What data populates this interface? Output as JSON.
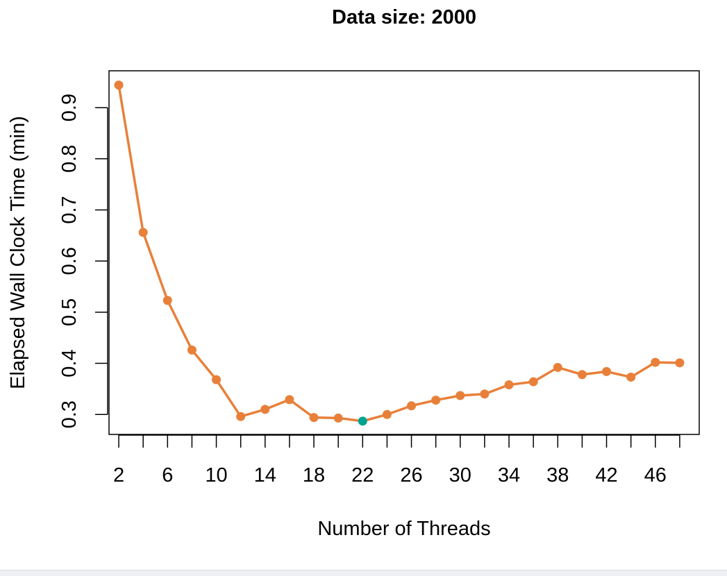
{
  "chart_data": {
    "type": "line",
    "title": "Data size: 2000",
    "xlabel": "Number of Threads",
    "ylabel": "Elapsed Wall Clock Time (min)",
    "x": [
      2,
      4,
      6,
      8,
      10,
      12,
      14,
      16,
      18,
      20,
      22,
      24,
      26,
      28,
      30,
      32,
      34,
      36,
      38,
      40,
      42,
      44,
      46,
      48
    ],
    "series": [
      {
        "values": [
          0.944,
          0.656,
          0.523,
          0.426,
          0.368,
          0.296,
          0.31,
          0.329,
          0.294,
          0.293,
          0.287,
          0.3,
          0.317,
          0.328,
          0.337,
          0.34,
          0.358,
          0.364,
          0.392,
          0.378,
          0.384,
          0.373,
          0.402,
          0.401
        ],
        "color": "#e8803a"
      }
    ],
    "highlight": {
      "x": 22,
      "y": 0.287,
      "color": "#00a38f"
    },
    "x_ticks": [
      2,
      4,
      6,
      8,
      10,
      12,
      14,
      16,
      18,
      20,
      22,
      24,
      26,
      28,
      30,
      32,
      34,
      36,
      38,
      40,
      42,
      44,
      46,
      48
    ],
    "x_tick_labels": [
      "2",
      "6",
      "10",
      "14",
      "18",
      "22",
      "26",
      "30",
      "34",
      "38",
      "42",
      "46"
    ],
    "y_ticks": [
      0.3,
      0.4,
      0.5,
      0.6,
      0.7,
      0.8,
      0.9
    ],
    "y_tick_labels": [
      "0.3",
      "0.4",
      "0.5",
      "0.6",
      "0.7",
      "0.8",
      "0.9"
    ],
    "xlim": [
      1.2,
      49.6
    ],
    "ylim": [
      0.261,
      0.972
    ],
    "grid": false,
    "legend": false
  }
}
